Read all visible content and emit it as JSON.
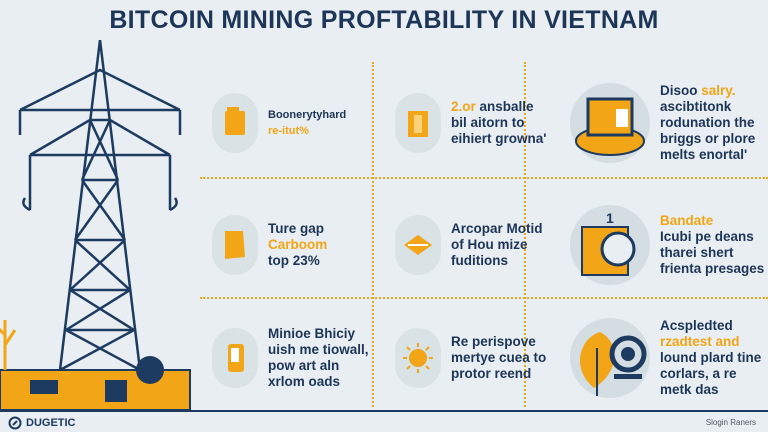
{
  "title": "BITCOIN MINING PROFTABILITY IN VIETNAM",
  "colors": {
    "navy": "#1d3557",
    "accent": "#f2a516",
    "background": "#e8eef1"
  },
  "cells": [
    {
      "icon": "fuel-can-icon",
      "lines": [
        [
          {
            "text": "Boonerytyhard",
            "accent": false
          }
        ],
        [
          {
            "text": "re-itut%",
            "accent": true
          }
        ]
      ]
    },
    {
      "icon": "battery-icon",
      "lines": [
        [
          {
            "text": "2.or",
            "accent": true
          },
          {
            "text": " ansballe",
            "accent": false
          }
        ],
        [
          {
            "text": "bil aitorn to",
            "accent": false
          }
        ],
        [
          {
            "text": "eihiert growna'",
            "accent": false
          }
        ]
      ]
    },
    {
      "icon": "computer-mining-rig-icon",
      "lines": [
        [
          {
            "text": "Disoo ",
            "accent": false
          },
          {
            "text": "salry.",
            "accent": true
          }
        ],
        [
          {
            "text": "ascibtitonk",
            "accent": false
          }
        ],
        [
          {
            "text": "rodunation the",
            "accent": false
          }
        ],
        [
          {
            "text": "briggs or plore",
            "accent": false
          }
        ],
        [
          {
            "text": "melts enortal'",
            "accent": false
          }
        ]
      ]
    },
    {
      "icon": "document-icon",
      "lines": [
        [
          {
            "text": "Ture gap",
            "accent": false
          }
        ],
        [
          {
            "text": "Carboom",
            "accent": true
          }
        ],
        [
          {
            "text": "top 23%",
            "accent": false
          }
        ]
      ]
    },
    {
      "icon": "arrow-diamond-icon",
      "lines": [
        [
          {
            "text": "Arcopar Motid",
            "accent": false
          }
        ],
        [
          {
            "text": "of Hou mize",
            "accent": false
          }
        ],
        [
          {
            "text": "fuditions",
            "accent": false
          }
        ]
      ]
    },
    {
      "icon": "mining-machine-icon",
      "lines": [
        [
          {
            "text": "Bandate",
            "accent": true
          }
        ],
        [
          {
            "text": "Icubi pe deans",
            "accent": false
          }
        ],
        [
          {
            "text": "tharei shert",
            "accent": false
          }
        ],
        [
          {
            "text": "frienta presages",
            "accent": false
          }
        ]
      ]
    },
    {
      "icon": "phone-icon",
      "lines": [
        [
          {
            "text": "Minioe Bhiciy",
            "accent": false
          }
        ],
        [
          {
            "text": "uish me tiowall,",
            "accent": false
          }
        ],
        [
          {
            "text": "pow art aln",
            "accent": false
          }
        ],
        [
          {
            "text": "xrlom oads",
            "accent": false
          }
        ]
      ]
    },
    {
      "icon": "sun-icon",
      "lines": [
        [
          {
            "text": "Re perispove",
            "accent": false
          }
        ],
        [
          {
            "text": "mertye cuea to",
            "accent": false
          }
        ],
        [
          {
            "text": "protor reend",
            "accent": false
          }
        ]
      ]
    },
    {
      "icon": "leaf-coin-icon",
      "lines": [
        [
          {
            "text": "Acspledted",
            "accent": false
          }
        ],
        [
          {
            "text": "rzadtest and",
            "accent": true
          }
        ],
        [
          {
            "text": "lound plard tine",
            "accent": false
          }
        ],
        [
          {
            "text": "corlars, a re",
            "accent": false
          }
        ],
        [
          {
            "text": "metk das",
            "accent": false
          }
        ]
      ]
    }
  ],
  "footer": {
    "logo_text": "DUGETIC",
    "slogan": "Slogin Raners"
  }
}
